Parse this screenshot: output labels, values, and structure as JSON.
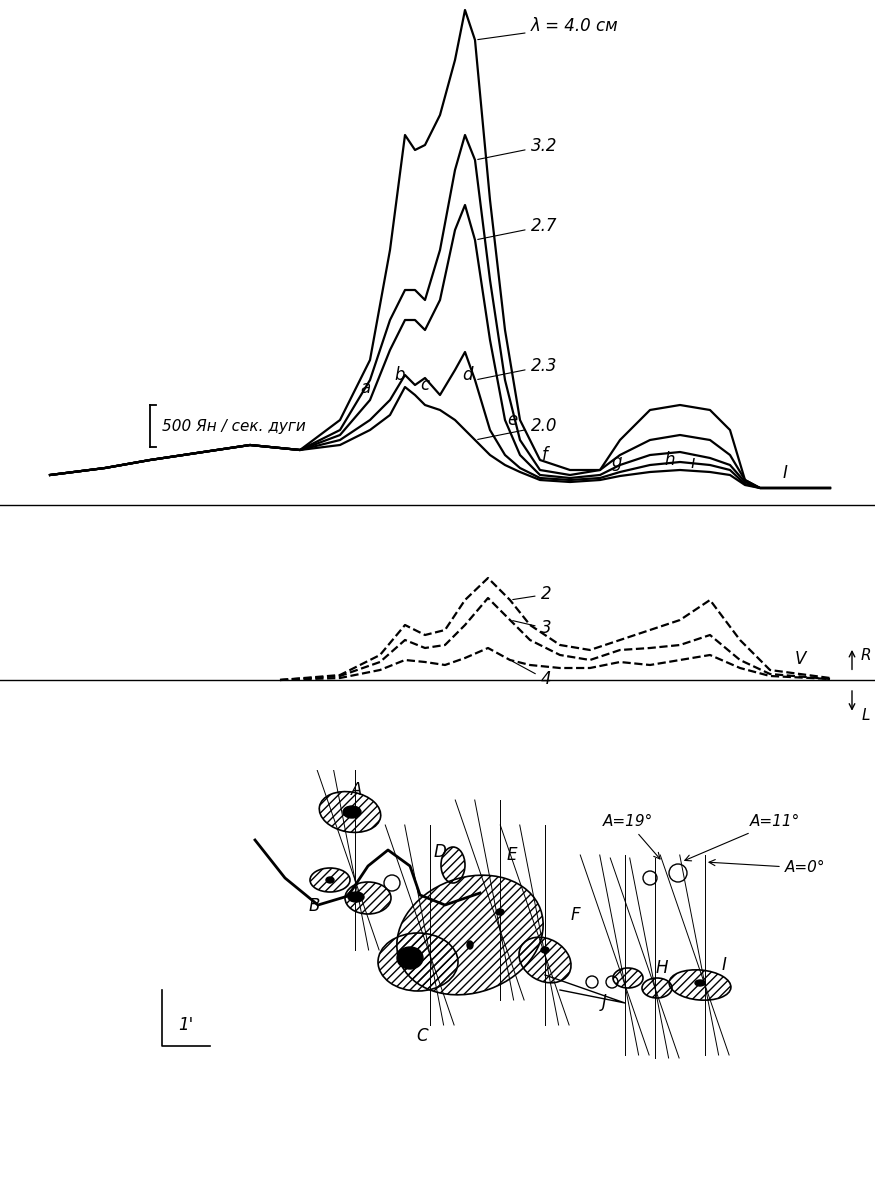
{
  "chart_data": [
    {
      "type": "line",
      "x": [
        50,
        105,
        150,
        250,
        300,
        340,
        370,
        390,
        405,
        415,
        425,
        440,
        455,
        465,
        475,
        490,
        505,
        520,
        540,
        570,
        600,
        620,
        650,
        680,
        710,
        730,
        745,
        760,
        830
      ],
      "series": [
        {
          "name": "λ = 4.0 см",
          "color": "#000000",
          "line_style": "solid",
          "values": [
            360,
            444,
            540,
            720,
            660,
            1020,
            1740,
            3060,
            4440,
            4260,
            4320,
            4680,
            5340,
            5940,
            5580,
            3660,
            2100,
            1020,
            540,
            420,
            420,
            780,
            1140,
            1200,
            1140,
            900,
            300,
            204,
            204
          ]
        },
        {
          "name": "3.2",
          "color": "#000000",
          "line_style": "solid",
          "values": [
            360,
            444,
            540,
            720,
            660,
            900,
            1500,
            2220,
            2580,
            2580,
            2460,
            3060,
            4020,
            4440,
            4140,
            2700,
            1500,
            780,
            420,
            360,
            420,
            600,
            780,
            840,
            780,
            600,
            300,
            204,
            204
          ]
        },
        {
          "name": "2.7",
          "color": "#000000",
          "line_style": "solid",
          "values": [
            360,
            444,
            540,
            720,
            660,
            840,
            1260,
            1860,
            2220,
            2220,
            2100,
            2460,
            3300,
            3600,
            3180,
            1980,
            1020,
            600,
            360,
            324,
            360,
            480,
            600,
            636,
            564,
            480,
            276,
            204,
            204
          ]
        },
        {
          "name": "2.3",
          "color": "#000000",
          "line_style": "solid",
          "values": [
            360,
            444,
            540,
            720,
            660,
            780,
            1020,
            1260,
            1560,
            1440,
            1524,
            1320,
            1620,
            1836,
            1500,
            900,
            600,
            444,
            324,
            300,
            324,
            396,
            480,
            516,
            480,
            420,
            252,
            204,
            204
          ]
        },
        {
          "name": "2.0",
          "color": "#000000",
          "line_style": "solid",
          "values": [
            360,
            444,
            540,
            720,
            660,
            720,
            900,
            1080,
            1416,
            1320,
            1200,
            1140,
            1020,
            900,
            780,
            600,
            480,
            396,
            300,
            276,
            300,
            348,
            396,
            420,
            396,
            360,
            240,
            204,
            204
          ]
        }
      ],
      "annotations": [
        {
          "text": "a",
          "x": 365,
          "y": 1404
        },
        {
          "text": "b",
          "x": 400,
          "y": 1560
        },
        {
          "text": "c",
          "x": 425,
          "y": 1440
        },
        {
          "text": "d",
          "x": 467,
          "y": 1560
        },
        {
          "text": "e",
          "x": 512,
          "y": 1020
        },
        {
          "text": "f",
          "x": 545,
          "y": 600
        },
        {
          "text": "g",
          "x": 617,
          "y": 516
        },
        {
          "text": "h",
          "x": 670,
          "y": 540
        },
        {
          "text": "i",
          "x": 693,
          "y": 504
        },
        {
          "text": "I",
          "x": 785,
          "y": 380
        }
      ],
      "scale_bar": {
        "value": 500,
        "label": "500 Ян / сек. дуги"
      },
      "xlim": [
        0,
        875
      ],
      "ylim": [
        -60,
        6060
      ],
      "tick_labels": false
    },
    {
      "type": "line",
      "x": [
        280,
        340,
        380,
        405,
        425,
        445,
        465,
        488,
        510,
        530,
        560,
        590,
        620,
        650,
        680,
        710,
        740,
        770,
        830
      ],
      "series": [
        {
          "name": "2",
          "color": "#000000",
          "line_style": "dashed",
          "values": [
            0,
            60,
            300,
            660,
            540,
            600,
            960,
            1224,
            960,
            660,
            420,
            360,
            480,
            600,
            720,
            960,
            480,
            120,
            24
          ]
        },
        {
          "name": "3",
          "color": "#000000",
          "line_style": "dashed",
          "values": [
            0,
            48,
            216,
            480,
            384,
            420,
            660,
            984,
            720,
            480,
            300,
            240,
            360,
            384,
            420,
            540,
            240,
            72,
            12
          ]
        },
        {
          "name": "4",
          "color": "#000000",
          "line_style": "dashed",
          "values": [
            0,
            24,
            120,
            240,
            216,
            180,
            264,
            384,
            240,
            180,
            144,
            144,
            216,
            180,
            240,
            300,
            144,
            48,
            12
          ]
        }
      ],
      "annotations": [
        {
          "text": "V",
          "x": 800,
          "y": 250
        }
      ],
      "up": "R",
      "down": "L",
      "xlim": [
        0,
        875
      ],
      "ylim": [
        -960,
        1320
      ],
      "tick_labels": false
    }
  ],
  "map": {
    "scale_label": "1'",
    "sources": [
      "A",
      "B",
      "C",
      "D",
      "E",
      "F",
      "J",
      "H",
      "I"
    ],
    "position_angles": [
      {
        "value": 19,
        "label": "A=19°"
      },
      {
        "value": 11,
        "label": "A=11°"
      },
      {
        "value": 0,
        "label": "A=0°"
      }
    ]
  }
}
